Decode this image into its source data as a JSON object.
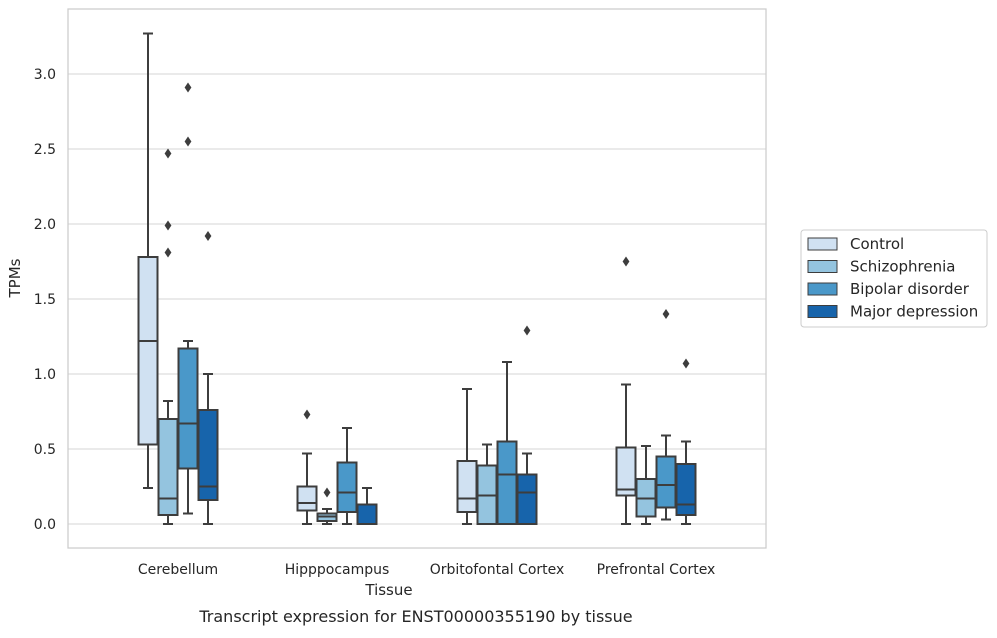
{
  "chart_data": {
    "type": "box",
    "title": "",
    "caption": "Transcript expression for ENST00000355190 by tissue",
    "xlabel": "Tissue",
    "ylabel": "TPMs",
    "ylim": [
      -0.16,
      3.44
    ],
    "yticks": [
      0.0,
      0.5,
      1.0,
      1.5,
      2.0,
      2.5,
      3.0
    ],
    "ytick_labels": [
      "0.0",
      "0.5",
      "1.0",
      "1.5",
      "2.0",
      "2.5",
      "3.0"
    ],
    "grid": "horizontal",
    "legend_position": "right",
    "categories": [
      "Cerebellum",
      "Hipppocampus",
      "Orbitofontal Cortex",
      "Prefrontal Cortex"
    ],
    "series": [
      {
        "name": "Control",
        "color": "#d0e1f2",
        "boxes": [
          {
            "whisker_low": 0.24,
            "q1": 0.53,
            "median": 1.22,
            "q3": 1.78,
            "whisker_high": 3.27,
            "outliers": []
          },
          {
            "whisker_low": 0.0,
            "q1": 0.09,
            "median": 0.14,
            "q3": 0.25,
            "whisker_high": 0.47,
            "outliers": [
              0.73
            ]
          },
          {
            "whisker_low": 0.0,
            "q1": 0.08,
            "median": 0.17,
            "q3": 0.42,
            "whisker_high": 0.9,
            "outliers": []
          },
          {
            "whisker_low": 0.0,
            "q1": 0.19,
            "median": 0.23,
            "q3": 0.51,
            "whisker_high": 0.93,
            "outliers": [
              1.75
            ]
          }
        ]
      },
      {
        "name": "Schizophrenia",
        "color": "#94c4df",
        "boxes": [
          {
            "whisker_low": 0.0,
            "q1": 0.06,
            "median": 0.17,
            "q3": 0.7,
            "whisker_high": 0.82,
            "outliers": [
              1.81,
              1.99,
              2.47
            ]
          },
          {
            "whisker_low": 0.0,
            "q1": 0.02,
            "median": 0.05,
            "q3": 0.07,
            "whisker_high": 0.1,
            "outliers": [
              0.21
            ]
          },
          {
            "whisker_low": 0.0,
            "q1": 0.0,
            "median": 0.19,
            "q3": 0.39,
            "whisker_high": 0.53,
            "outliers": []
          },
          {
            "whisker_low": 0.0,
            "q1": 0.05,
            "median": 0.17,
            "q3": 0.3,
            "whisker_high": 0.52,
            "outliers": []
          }
        ]
      },
      {
        "name": "Bipolar disorder",
        "color": "#4a98c9",
        "boxes": [
          {
            "whisker_low": 0.07,
            "q1": 0.37,
            "median": 0.67,
            "q3": 1.17,
            "whisker_high": 1.22,
            "outliers": [
              2.55,
              2.91
            ]
          },
          {
            "whisker_low": 0.0,
            "q1": 0.08,
            "median": 0.21,
            "q3": 0.41,
            "whisker_high": 0.64,
            "outliers": []
          },
          {
            "whisker_low": 0.0,
            "q1": 0.0,
            "median": 0.33,
            "q3": 0.55,
            "whisker_high": 1.08,
            "outliers": []
          },
          {
            "whisker_low": 0.03,
            "q1": 0.11,
            "median": 0.26,
            "q3": 0.45,
            "whisker_high": 0.59,
            "outliers": [
              1.4
            ]
          }
        ]
      },
      {
        "name": "Major depression",
        "color": "#1764ab",
        "boxes": [
          {
            "whisker_low": 0.0,
            "q1": 0.16,
            "median": 0.25,
            "q3": 0.76,
            "whisker_high": 1.0,
            "outliers": [
              1.92
            ]
          },
          {
            "whisker_low": 0.0,
            "q1": 0.0,
            "median": 0.0,
            "q3": 0.13,
            "whisker_high": 0.24,
            "outliers": []
          },
          {
            "whisker_low": 0.0,
            "q1": 0.0,
            "median": 0.21,
            "q3": 0.33,
            "whisker_high": 0.47,
            "outliers": [
              1.29
            ]
          },
          {
            "whisker_low": 0.0,
            "q1": 0.06,
            "median": 0.13,
            "q3": 0.4,
            "whisker_high": 0.55,
            "outliers": [
              1.07
            ]
          }
        ]
      }
    ]
  }
}
